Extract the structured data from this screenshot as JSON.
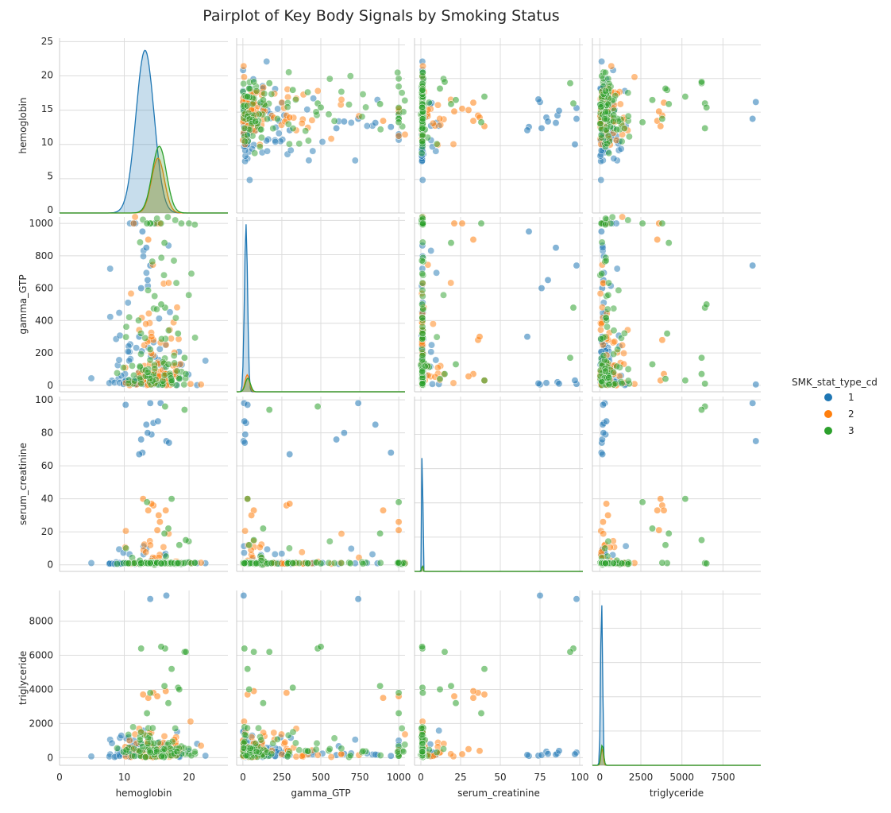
{
  "figure": {
    "title": "Pairplot of Key Body Signals by Smoking Status"
  },
  "legend": {
    "title": "SMK_stat_type_cd",
    "entries": [
      {
        "label": "1",
        "color": "#1f77b4"
      },
      {
        "label": "2",
        "color": "#ff7f0e"
      },
      {
        "label": "3",
        "color": "#2ca02c"
      }
    ],
    "placement": "right-center"
  },
  "chart_data": {
    "type": "scatter",
    "kind": "pairplot",
    "hue": "SMK_stat_type_cd",
    "grid": true,
    "point_alpha": 0.55,
    "variables": [
      {
        "name": "hemoglobin",
        "range": [
          0,
          26
        ],
        "ticks": [
          0,
          10,
          20
        ],
        "row_ticks": [
          0,
          5,
          10,
          15,
          20,
          25
        ]
      },
      {
        "name": "gamma_GTP",
        "range": [
          -40,
          1040
        ],
        "ticks": [
          0,
          250,
          500,
          750,
          1000
        ],
        "row_ticks": [
          0,
          200,
          400,
          600,
          800,
          1000
        ]
      },
      {
        "name": "serum_creatinine",
        "range": [
          -4,
          102
        ],
        "ticks": [
          0,
          25,
          50,
          75,
          100
        ],
        "row_ticks": [
          0,
          20,
          40,
          60,
          80,
          100
        ]
      },
      {
        "name": "triglyceride",
        "range": [
          -450,
          9800
        ],
        "ticks": [
          0,
          2500,
          5000,
          7500
        ],
        "row_ticks": [
          0,
          2000,
          4000,
          6000,
          8000
        ]
      }
    ],
    "series": [
      {
        "name": "1",
        "color": "#1f77b4",
        "kde": [
          {
            "variable": "hemoglobin",
            "mode": 13.2,
            "sd": 1.4,
            "peak_fraction": 0.95
          },
          {
            "variable": "gamma_GTP",
            "mode": 20,
            "sd": 10,
            "peak_fraction": 0.98
          },
          {
            "variable": "serum_creatinine",
            "mode": 0.9,
            "sd": 0.3,
            "peak_fraction": 0.97
          },
          {
            "variable": "triglyceride",
            "mode": 110,
            "sd": 60,
            "peak_fraction": 0.97
          }
        ],
        "outliers": {
          "hemoglobin": [
            16.5,
            16.9,
            15.6,
            10.2,
            12.6,
            12.8,
            14.5,
            13.4,
            15.2,
            14.2,
            13.6,
            12.3,
            14.0
          ],
          "gamma_GTP": [
            5,
            12,
            8,
            30,
            600,
            950,
            20,
            850,
            10,
            15,
            650,
            300,
            740
          ],
          "serum_creatinine": [
            75,
            74,
            98,
            97,
            76,
            68,
            86,
            85,
            87,
            79,
            80,
            67,
            98
          ],
          "triglyceride": [
            9500,
            120,
            300,
            200,
            150,
            100,
            250,
            180,
            400,
            350,
            220,
            160,
            9300
          ]
        }
      },
      {
        "name": "2",
        "color": "#ff7f0e",
        "kde": [
          {
            "variable": "hemoglobin",
            "mode": 15.2,
            "sd": 1.0,
            "peak_fraction": 0.32
          },
          {
            "variable": "gamma_GTP",
            "mode": 28,
            "sd": 14,
            "peak_fraction": 0.1
          },
          {
            "variable": "serum_creatinine",
            "mode": 1.0,
            "sd": 0.3,
            "peak_fraction": 0.05
          },
          {
            "variable": "triglyceride",
            "mode": 140,
            "sd": 70,
            "peak_fraction": 0.1
          }
        ],
        "outliers": {
          "hemoglobin": [
            14.5,
            15.1,
            13.7,
            15.5,
            12.9,
            16.4,
            14.2,
            15.3
          ],
          "gamma_GTP": [
            280,
            1000,
            900,
            1000,
            30,
            70,
            300,
            55
          ],
          "serum_creatinine": [
            36,
            21,
            33,
            26,
            40,
            33,
            37,
            30
          ],
          "triglyceride": [
            3800,
            3600,
            3500,
            200,
            3700,
            3900,
            400,
            500
          ]
        }
      },
      {
        "name": "3",
        "color": "#2ca02c",
        "kde": [
          {
            "variable": "hemoglobin",
            "mode": 15.4,
            "sd": 1.1,
            "peak_fraction": 0.39
          },
          {
            "variable": "gamma_GTP",
            "mode": 32,
            "sd": 16,
            "peak_fraction": 0.08
          },
          {
            "variable": "serum_creatinine",
            "mode": 1.0,
            "sd": 0.3,
            "peak_fraction": 0.05
          },
          {
            "variable": "triglyceride",
            "mode": 150,
            "sd": 80,
            "peak_fraction": 0.12
          }
        ],
        "outliers": {
          "hemoglobin": [
            17.3,
            16.3,
            19.3,
            18.3,
            12.6,
            15.7,
            14.0,
            13.5,
            16.8,
            16.2,
            19.5,
            18.5
          ],
          "gamma_GTP": [
            30,
            480,
            170,
            320,
            10,
            500,
            1000,
            1000,
            130,
            880,
            70,
            40
          ],
          "serum_creatinine": [
            40,
            96,
            94,
            1,
            1,
            0.8,
            1.2,
            38,
            22,
            19,
            15,
            12
          ],
          "triglyceride": [
            5200,
            6400,
            6200,
            4100,
            6400,
            6500,
            3800,
            2600,
            3200,
            4200,
            6200,
            4000
          ]
        }
      }
    ]
  }
}
